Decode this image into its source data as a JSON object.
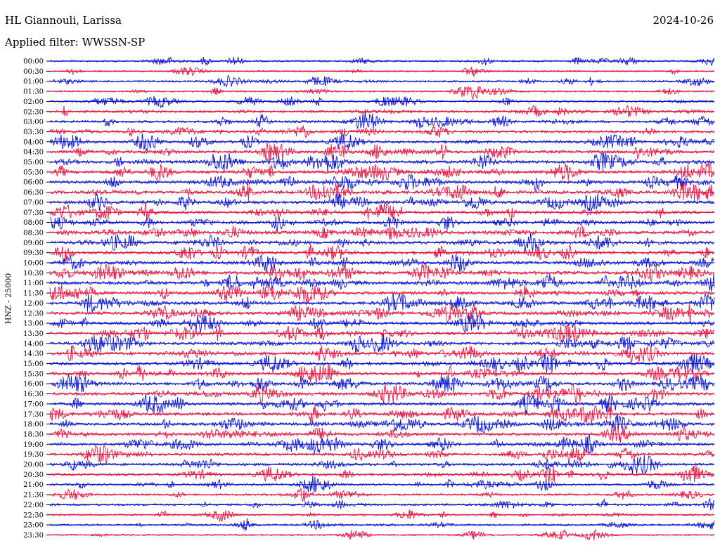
{
  "header": {
    "station": "HL Giannouli, Larissa",
    "date": "2024-10-26",
    "filter": "Applied filter: WWSSN-SP"
  },
  "axis": {
    "ylabel": "HNZ - 25000"
  },
  "colors": {
    "trace_a": "#0a14d8",
    "trace_b": "#ee1340",
    "background": "#ffffff",
    "text": "#000000"
  },
  "chart_data": {
    "type": "line",
    "title": "HL Giannouli, Larissa",
    "date": "2024-10-26",
    "filter": "WWSSN-SP",
    "ylabel": "HNZ - 25000",
    "row_labels": [
      "00:00",
      "00:30",
      "01:00",
      "01:30",
      "02:00",
      "02:30",
      "03:00",
      "03:30",
      "04:00",
      "04:30",
      "05:00",
      "05:30",
      "06:00",
      "06:30",
      "07:00",
      "07:30",
      "08:00",
      "08:30",
      "09:00",
      "09:30",
      "10:00",
      "10:30",
      "11:00",
      "11:30",
      "12:00",
      "12:30",
      "13:00",
      "13:30",
      "14:00",
      "14:30",
      "15:00",
      "15:30",
      "16:00",
      "16:30",
      "17:00",
      "17:30",
      "18:00",
      "18:30",
      "19:00",
      "19:30",
      "20:00",
      "20:30",
      "21:00",
      "21:30",
      "22:00",
      "22:30",
      "23:00",
      "23:30"
    ],
    "row_colors": [
      "trace_a",
      "trace_b"
    ],
    "rows_per_color_cycle": 2,
    "activity_level": [
      0.35,
      0.2,
      0.4,
      0.3,
      0.45,
      0.55,
      0.6,
      0.7,
      0.75,
      0.85,
      0.9,
      0.85,
      0.9,
      0.95,
      0.9,
      0.8,
      0.85,
      0.95,
      0.9,
      0.9,
      0.95,
      1.0,
      1.0,
      0.95,
      0.95,
      0.9,
      0.85,
      0.85,
      0.85,
      0.9,
      0.9,
      0.85,
      0.85,
      0.9,
      0.85,
      0.85,
      0.8,
      0.8,
      0.75,
      0.7,
      0.7,
      0.65,
      0.55,
      0.45,
      0.5,
      0.35,
      0.4,
      0.25
    ],
    "grid": false
  }
}
